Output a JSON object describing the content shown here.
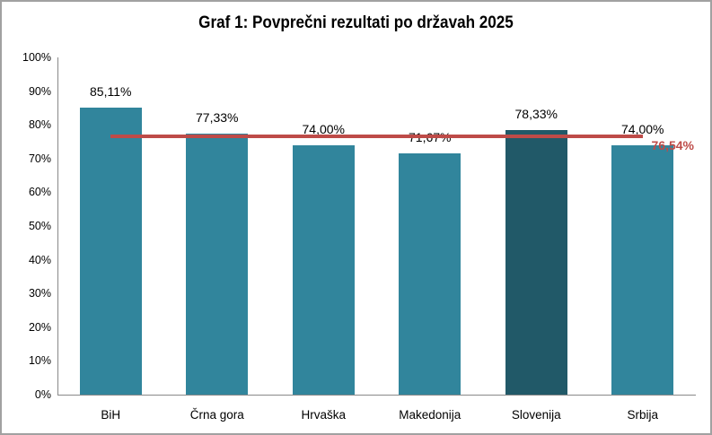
{
  "chart_data": {
    "type": "bar",
    "title": "Graf 1: Povprečni rezultati po državah 2025",
    "categories": [
      "BiH",
      "Črna gora",
      "Hrvaška",
      "Makedonija",
      "Slovenija",
      "Srbija"
    ],
    "values": [
      85.11,
      77.33,
      74.0,
      71.67,
      78.33,
      74.0
    ],
    "value_labels": [
      "85,11%",
      "77,33%",
      "74,00%",
      "71,67%",
      "78,33%",
      "74,00%"
    ],
    "ylim": [
      0,
      100
    ],
    "ytick_labels": [
      "0%",
      "10%",
      "20%",
      "30%",
      "40%",
      "50%",
      "60%",
      "70%",
      "80%",
      "90%",
      "100%"
    ],
    "grid": false,
    "legend": "none",
    "bar_color": "#31859C",
    "highlight_bar": {
      "index": 4,
      "color": "#215968"
    },
    "reference_line": {
      "value": 76.54,
      "label": "76,54%",
      "color": "#BE4B48"
    },
    "axis_color": "#898989",
    "border_color": "#A1A1A1"
  }
}
